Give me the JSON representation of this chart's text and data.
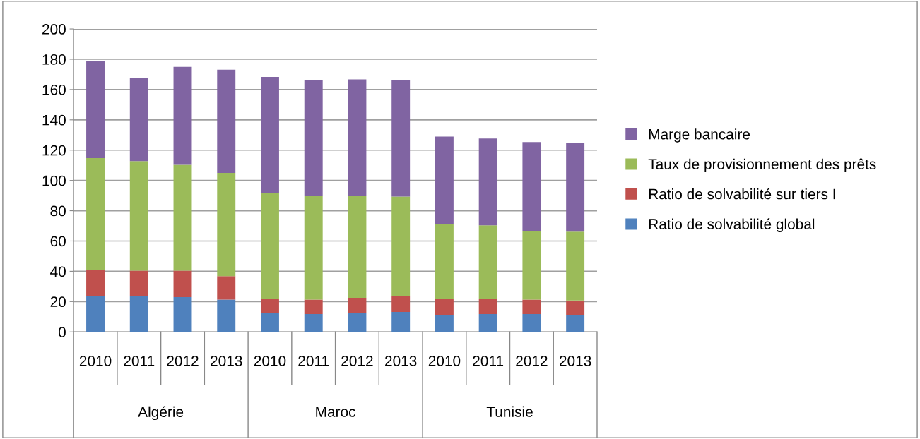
{
  "chart_data": {
    "type": "bar",
    "stacked": true,
    "categories": [
      "2010",
      "2011",
      "2012",
      "2013",
      "2010",
      "2011",
      "2012",
      "2013",
      "2010",
      "2011",
      "2012",
      "2013"
    ],
    "annotations": [
      "Algérie",
      "Maroc",
      "Tunisie"
    ],
    "series": [
      {
        "name": "Ratio de solvabilité global",
        "color": "#4f81bd",
        "values": [
          23.6,
          23.6,
          23.0,
          21.3,
          12.4,
          11.7,
          12.4,
          13.1,
          11.2,
          11.7,
          11.7,
          11.2
        ]
      },
      {
        "name": "Ratio de solvabilité sur tiers I",
        "color": "#c0504d",
        "values": [
          17.4,
          16.8,
          17.4,
          15.5,
          9.5,
          9.6,
          10.1,
          10.7,
          10.7,
          10.2,
          9.6,
          9.5
        ]
      },
      {
        "name": "Taux de provisionnement des prêts",
        "color": "#9bbb59",
        "values": [
          73.7,
          72.4,
          69.9,
          68.2,
          69.9,
          68.7,
          67.5,
          65.6,
          49.1,
          48.5,
          45.5,
          45.5
        ]
      },
      {
        "name": "Marge bancaire",
        "color": "#8064a2",
        "values": [
          64.0,
          55.0,
          64.7,
          68.1,
          76.5,
          76.1,
          76.7,
          76.7,
          58.0,
          57.3,
          58.5,
          58.6
        ]
      }
    ],
    "ylim": [
      0,
      200
    ],
    "yticks": [
      0,
      20,
      40,
      60,
      80,
      100,
      120,
      140,
      160,
      180,
      200
    ],
    "grid": "y",
    "legend": "right"
  }
}
